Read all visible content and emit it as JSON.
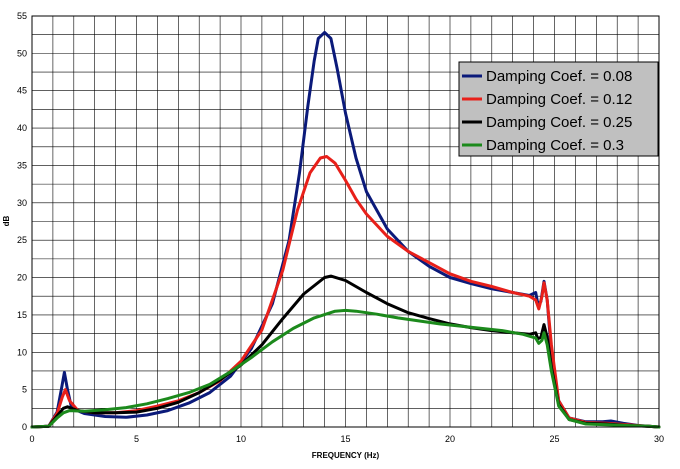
{
  "chart_data": {
    "type": "line",
    "title": "",
    "xlabel": "FREQUENCY (Hz)",
    "ylabel": "dB",
    "xlim": [
      0,
      30
    ],
    "ylim": [
      0,
      55
    ],
    "xticks": [
      0,
      5,
      10,
      15,
      20,
      25,
      30
    ],
    "yticks": [
      0,
      5,
      10,
      15,
      20,
      25,
      30,
      35,
      40,
      45,
      50,
      55
    ],
    "grid": true,
    "legend_position": "top-right",
    "series": [
      {
        "name": "Damping Coef. = 0.08",
        "color": "#0b1a7a",
        "points": [
          [
            0,
            0
          ],
          [
            0.8,
            0.1
          ],
          [
            1.2,
            2.0
          ],
          [
            1.4,
            5.0
          ],
          [
            1.55,
            7.3
          ],
          [
            1.7,
            5.0
          ],
          [
            1.9,
            2.5
          ],
          [
            2.5,
            1.8
          ],
          [
            3.5,
            1.4
          ],
          [
            4.5,
            1.3
          ],
          [
            5.5,
            1.6
          ],
          [
            6.5,
            2.2
          ],
          [
            7.5,
            3.2
          ],
          [
            8.5,
            4.6
          ],
          [
            9.5,
            6.8
          ],
          [
            10.5,
            10.5
          ],
          [
            11.5,
            16.5
          ],
          [
            12.3,
            25.0
          ],
          [
            12.8,
            34.0
          ],
          [
            13.2,
            43.0
          ],
          [
            13.5,
            49.0
          ],
          [
            13.7,
            52.0
          ],
          [
            14.0,
            52.8
          ],
          [
            14.3,
            52.0
          ],
          [
            14.6,
            48.0
          ],
          [
            15.0,
            42.0
          ],
          [
            15.5,
            36.0
          ],
          [
            16.0,
            31.5
          ],
          [
            17.0,
            26.5
          ],
          [
            18.0,
            23.5
          ],
          [
            19.0,
            21.5
          ],
          [
            20.0,
            20.0
          ],
          [
            21.0,
            19.2
          ],
          [
            22.0,
            18.5
          ],
          [
            23.0,
            18.0
          ],
          [
            23.8,
            17.6
          ],
          [
            24.1,
            18.0
          ],
          [
            24.2,
            16.5
          ],
          [
            24.35,
            16.8
          ],
          [
            24.5,
            19.5
          ],
          [
            24.65,
            17.0
          ],
          [
            24.85,
            10.0
          ],
          [
            25.2,
            3.5
          ],
          [
            25.7,
            1.2
          ],
          [
            26.5,
            0.7
          ],
          [
            27.3,
            0.7
          ],
          [
            27.7,
            0.8
          ],
          [
            28.3,
            0.5
          ],
          [
            29.0,
            0.2
          ],
          [
            30.0,
            0
          ]
        ]
      },
      {
        "name": "Damping Coef. = 0.12",
        "color": "#e8201a",
        "points": [
          [
            0,
            0
          ],
          [
            0.8,
            0.1
          ],
          [
            1.2,
            1.8
          ],
          [
            1.45,
            4.0
          ],
          [
            1.6,
            5.0
          ],
          [
            1.8,
            3.5
          ],
          [
            2.2,
            2.2
          ],
          [
            3,
            1.9
          ],
          [
            4,
            1.9
          ],
          [
            5,
            2.2
          ],
          [
            6,
            2.8
          ],
          [
            7,
            3.5
          ],
          [
            8,
            4.6
          ],
          [
            9,
            6.2
          ],
          [
            10,
            8.8
          ],
          [
            11,
            13.0
          ],
          [
            12,
            21.0
          ],
          [
            12.7,
            29.0
          ],
          [
            13.3,
            34.0
          ],
          [
            13.8,
            36.0
          ],
          [
            14.1,
            36.2
          ],
          [
            14.5,
            35.3
          ],
          [
            15.0,
            33.0
          ],
          [
            15.5,
            30.5
          ],
          [
            16.0,
            28.5
          ],
          [
            17.0,
            25.5
          ],
          [
            18.0,
            23.5
          ],
          [
            19.0,
            22.0
          ],
          [
            20.0,
            20.5
          ],
          [
            21.0,
            19.5
          ],
          [
            22.0,
            18.8
          ],
          [
            23.0,
            18.0
          ],
          [
            23.8,
            17.5
          ],
          [
            24.1,
            17.0
          ],
          [
            24.25,
            15.8
          ],
          [
            24.4,
            17.5
          ],
          [
            24.5,
            19.3
          ],
          [
            24.65,
            17.0
          ],
          [
            24.85,
            11.0
          ],
          [
            25.2,
            3.5
          ],
          [
            25.7,
            1.2
          ],
          [
            26.5,
            0.6
          ],
          [
            27.5,
            0.5
          ],
          [
            28.5,
            0.3
          ],
          [
            29.5,
            0.1
          ],
          [
            30.0,
            0
          ]
        ]
      },
      {
        "name": "Damping Coef. = 0.25",
        "color": "#000000",
        "points": [
          [
            0,
            0
          ],
          [
            0.8,
            0.1
          ],
          [
            1.2,
            1.5
          ],
          [
            1.5,
            2.5
          ],
          [
            1.7,
            2.7
          ],
          [
            2.2,
            2.2
          ],
          [
            3,
            1.9
          ],
          [
            4,
            1.9
          ],
          [
            5,
            2.0
          ],
          [
            6,
            2.5
          ],
          [
            7,
            3.3
          ],
          [
            8,
            4.6
          ],
          [
            9,
            6.3
          ],
          [
            10,
            8.3
          ],
          [
            11,
            11.0
          ],
          [
            12,
            14.5
          ],
          [
            13,
            17.8
          ],
          [
            14,
            20.0
          ],
          [
            14.3,
            20.2
          ],
          [
            15,
            19.6
          ],
          [
            16,
            18.0
          ],
          [
            17,
            16.5
          ],
          [
            18,
            15.3
          ],
          [
            19,
            14.5
          ],
          [
            20,
            13.8
          ],
          [
            21,
            13.3
          ],
          [
            22,
            12.9
          ],
          [
            23,
            12.6
          ],
          [
            23.8,
            12.4
          ],
          [
            24.1,
            12.6
          ],
          [
            24.2,
            11.8
          ],
          [
            24.35,
            12.0
          ],
          [
            24.5,
            13.7
          ],
          [
            24.65,
            12.0
          ],
          [
            24.85,
            8.0
          ],
          [
            25.2,
            3.0
          ],
          [
            25.7,
            1.0
          ],
          [
            26.5,
            0.5
          ],
          [
            27.5,
            0.4
          ],
          [
            28.5,
            0.2
          ],
          [
            29.5,
            0.1
          ],
          [
            30.0,
            0
          ]
        ]
      },
      {
        "name": "Damping Coef. = 0.3",
        "color": "#1c8a1c",
        "points": [
          [
            0,
            0
          ],
          [
            0.8,
            0.1
          ],
          [
            1.2,
            1.2
          ],
          [
            1.5,
            1.9
          ],
          [
            1.8,
            2.2
          ],
          [
            2.5,
            2.1
          ],
          [
            3.5,
            2.3
          ],
          [
            4.5,
            2.6
          ],
          [
            5.5,
            3.1
          ],
          [
            6.5,
            3.8
          ],
          [
            7.5,
            4.6
          ],
          [
            8.5,
            5.7
          ],
          [
            9.5,
            7.4
          ],
          [
            10.5,
            9.3
          ],
          [
            11.5,
            11.4
          ],
          [
            12.5,
            13.2
          ],
          [
            13.5,
            14.6
          ],
          [
            14.5,
            15.5
          ],
          [
            15.0,
            15.6
          ],
          [
            15.5,
            15.5
          ],
          [
            16.5,
            15.1
          ],
          [
            17.5,
            14.6
          ],
          [
            18.5,
            14.2
          ],
          [
            19.5,
            13.8
          ],
          [
            20.5,
            13.5
          ],
          [
            21.5,
            13.2
          ],
          [
            22.5,
            12.9
          ],
          [
            23.5,
            12.4
          ],
          [
            24.1,
            11.9
          ],
          [
            24.25,
            11.2
          ],
          [
            24.4,
            11.6
          ],
          [
            24.5,
            12.6
          ],
          [
            24.65,
            11.0
          ],
          [
            24.85,
            7.5
          ],
          [
            25.2,
            2.8
          ],
          [
            25.7,
            1.0
          ],
          [
            26.5,
            0.4
          ],
          [
            27.5,
            0.3
          ],
          [
            28.5,
            0.2
          ],
          [
            29.5,
            0.1
          ],
          [
            30.0,
            0
          ]
        ]
      }
    ]
  }
}
